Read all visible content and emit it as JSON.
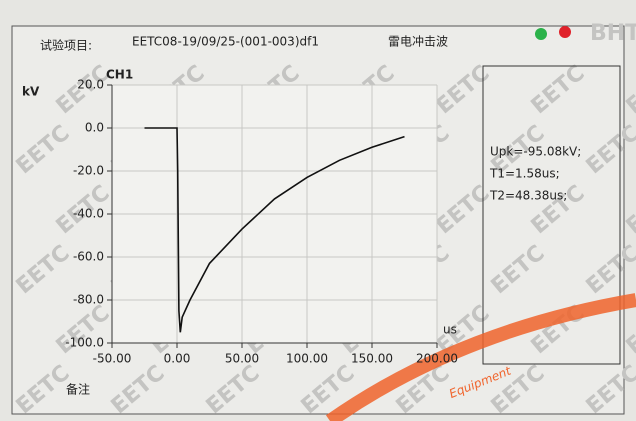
{
  "header": {
    "item_label": "试验项目:",
    "item_code": "EETC08-19/09/25-(001-003)df1",
    "test_type": "雷电冲击波"
  },
  "chart_data": {
    "type": "line",
    "title": "CH1",
    "y_label": "kV",
    "x_label": "us",
    "series": [
      {
        "name": "CH1",
        "color": "#111111",
        "x": [
          -25,
          0,
          0.5,
          1.5,
          2.5,
          4,
          10,
          25,
          50,
          75,
          100,
          125,
          150,
          175
        ],
        "values": [
          0,
          0,
          -20,
          -85,
          -95,
          -88,
          -80,
          -63,
          -47,
          -33,
          -23,
          -15,
          -9,
          -4
        ]
      }
    ],
    "xlim": [
      -50,
      200
    ],
    "xticks": [
      {
        "value": -50,
        "label": "-50.00"
      },
      {
        "value": 0,
        "label": "0.00"
      },
      {
        "value": 50,
        "label": "50.00"
      },
      {
        "value": 100,
        "label": "100.00"
      },
      {
        "value": 150,
        "label": "150.00"
      },
      {
        "value": 200,
        "label": "200.00"
      }
    ],
    "ylim": [
      -100,
      20
    ],
    "yticks": [
      {
        "value": 20,
        "label": "20.0"
      },
      {
        "value": 0,
        "label": "0.0"
      },
      {
        "value": -20,
        "label": "-20.0"
      },
      {
        "value": -40,
        "label": "-40.0"
      },
      {
        "value": -60,
        "label": "-60.0"
      },
      {
        "value": -80,
        "label": "-80.0"
      },
      {
        "value": -100,
        "label": "-100.0"
      }
    ],
    "grid": true
  },
  "results": [
    "Upk=-95.08kV;",
    "T1=1.58us;",
    "T2=48.38us;"
  ],
  "footer": {
    "remark": "备注"
  },
  "watermark": {
    "text": "EETC",
    "corner": "BHT"
  },
  "stamp": {
    "text": "Equipment"
  }
}
